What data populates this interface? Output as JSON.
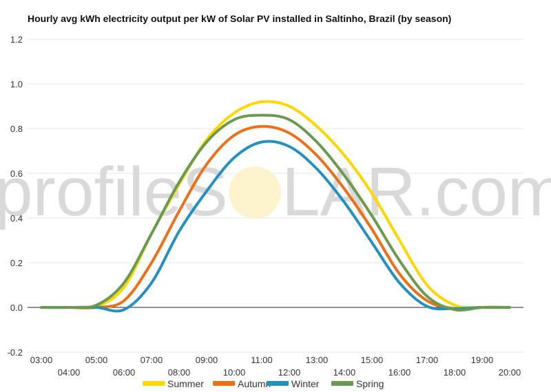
{
  "chart_data": {
    "type": "line",
    "title": "Hourly avg kWh electricity output per kW of Solar PV installed in Saltinho, Brazil (by season)",
    "xlabel": "",
    "ylabel": "",
    "ylim": [
      -0.2,
      1.2
    ],
    "yticks": [
      "-0.2",
      "0.0",
      "0.2",
      "0.4",
      "0.6",
      "0.8",
      "1.0",
      "1.2"
    ],
    "x_top": [
      "03:00",
      "05:00",
      "07:00",
      "09:00",
      "11:00",
      "13:00",
      "15:00",
      "17:00",
      "19:00"
    ],
    "x_bottom": [
      "04:00",
      "06:00",
      "08:00",
      "10:00",
      "12:00",
      "14:00",
      "16:00",
      "18:00",
      "20:00"
    ],
    "hours": [
      3,
      4,
      5,
      6,
      7,
      8,
      9,
      10,
      11,
      12,
      13,
      14,
      15,
      16,
      17,
      18,
      19,
      20
    ],
    "grid": true,
    "legend_position": "bottom",
    "series": [
      {
        "name": "Summer",
        "color": "#FFD700",
        "values": [
          0,
          0,
          0.005,
          0.09,
          0.33,
          0.55,
          0.75,
          0.87,
          0.92,
          0.9,
          0.81,
          0.68,
          0.51,
          0.3,
          0.1,
          0.01,
          0,
          0
        ]
      },
      {
        "name": "Autumn",
        "color": "#E8711A",
        "values": [
          0,
          0,
          0,
          0.03,
          0.2,
          0.43,
          0.64,
          0.77,
          0.81,
          0.78,
          0.68,
          0.53,
          0.35,
          0.15,
          0.03,
          -0.005,
          0,
          0
        ]
      },
      {
        "name": "Winter",
        "color": "#2490C0",
        "values": [
          0,
          0,
          0,
          -0.01,
          0.11,
          0.34,
          0.52,
          0.67,
          0.74,
          0.72,
          0.62,
          0.47,
          0.29,
          0.11,
          0.005,
          -0.005,
          0,
          0
        ]
      },
      {
        "name": "Spring",
        "color": "#6A9A4F",
        "values": [
          0,
          0,
          0.01,
          0.11,
          0.33,
          0.56,
          0.74,
          0.84,
          0.86,
          0.84,
          0.74,
          0.59,
          0.41,
          0.21,
          0.05,
          -0.01,
          0,
          0
        ]
      }
    ]
  },
  "watermark": {
    "left_text": "profileS",
    "right_text": "LAR.com"
  }
}
